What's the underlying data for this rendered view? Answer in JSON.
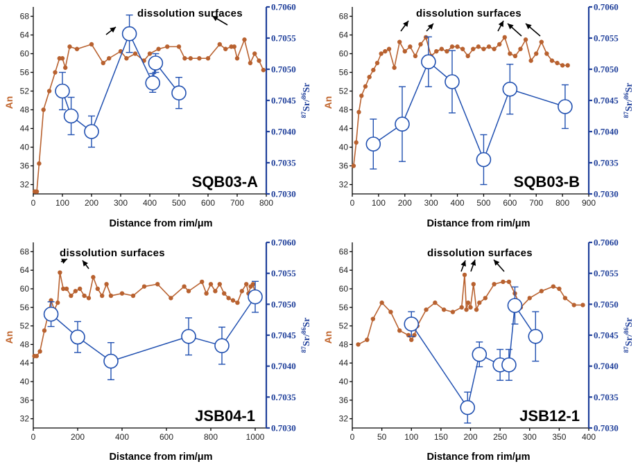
{
  "colors": {
    "an": "#b8612f",
    "sr": "#1f4fb0",
    "axis_right": "#1f3f9a",
    "label_an": "#c0632a"
  },
  "chart_data": [
    {
      "type": "line",
      "title": "SQB03-A",
      "xlabel": "Distance from rim/μm",
      "ylabel_left": "An",
      "ylabel_right": "87Sr/86Sr",
      "xlim": [
        0,
        800
      ],
      "xticks": [
        0,
        100,
        200,
        300,
        400,
        500,
        600,
        700,
        800
      ],
      "ylim_left": [
        30,
        70
      ],
      "yticks_left": [
        32,
        36,
        40,
        44,
        48,
        52,
        56,
        60,
        64,
        68
      ],
      "ylim_right": [
        0.703,
        0.706
      ],
      "yticks_right": [
        "0.7030",
        "0.7035",
        "0.7040",
        "0.7045",
        "0.7050",
        "0.7055",
        "0.7060"
      ],
      "annotation": "dissolution surfaces",
      "series": [
        {
          "name": "An",
          "x": [
            5,
            12,
            20,
            35,
            55,
            75,
            90,
            100,
            110,
            125,
            150,
            200,
            240,
            260,
            300,
            320,
            350,
            380,
            400,
            430,
            460,
            500,
            520,
            540,
            570,
            600,
            640,
            660,
            680,
            690,
            700,
            725,
            745,
            760,
            775,
            790
          ],
          "y": [
            30.5,
            30.5,
            36.5,
            48,
            52,
            56,
            59,
            59,
            57,
            61.5,
            61,
            62,
            58,
            59,
            60.5,
            59,
            60,
            58.5,
            60,
            61,
            61.5,
            61.5,
            59,
            59,
            59,
            59,
            62,
            61,
            61.5,
            61.5,
            59,
            63,
            58,
            60,
            58.5,
            56.5
          ]
        },
        {
          "name": "87Sr/86Sr",
          "x": [
            100,
            130,
            200,
            330,
            410,
            420,
            500
          ],
          "y": [
            0.70465,
            0.70425,
            0.704,
            0.70557,
            0.70478,
            0.7051,
            0.70462
          ],
          "err": [
            0.0003,
            0.0003,
            0.00025,
            0.0003,
            0.00015,
            0.00015,
            0.00025
          ]
        }
      ]
    },
    {
      "type": "line",
      "title": "SQB03-B",
      "xlabel": "Distance from rim/μm",
      "ylabel_left": "An",
      "ylabel_right": "87Sr/86Sr",
      "xlim": [
        0,
        900
      ],
      "xticks": [
        0,
        100,
        200,
        300,
        400,
        500,
        600,
        700,
        800,
        900
      ],
      "ylim_left": [
        30,
        70
      ],
      "yticks_left": [
        32,
        36,
        40,
        44,
        48,
        52,
        56,
        60,
        64,
        68
      ],
      "ylim_right": [
        0.703,
        0.706
      ],
      "yticks_right": [
        "0.7030",
        "0.7035",
        "0.7040",
        "0.7045",
        "0.7050",
        "0.7055",
        "0.7060"
      ],
      "annotation": "dissolution surfaces",
      "series": [
        {
          "name": "An",
          "x": [
            5,
            15,
            25,
            35,
            50,
            65,
            80,
            95,
            110,
            125,
            140,
            160,
            180,
            200,
            220,
            240,
            260,
            280,
            300,
            320,
            340,
            360,
            380,
            400,
            420,
            440,
            460,
            480,
            500,
            520,
            540,
            560,
            580,
            600,
            620,
            640,
            660,
            680,
            700,
            720,
            740,
            760,
            780,
            800,
            820
          ],
          "y": [
            36,
            41,
            47.5,
            51,
            53,
            55,
            56.5,
            58,
            60,
            60.5,
            61,
            57,
            62.5,
            60.5,
            61.5,
            59.5,
            62,
            63.5,
            59.5,
            60.5,
            61,
            60.5,
            61.5,
            61.5,
            61,
            59.5,
            61,
            61.5,
            61,
            61.5,
            61,
            62,
            63.5,
            60,
            59.5,
            61,
            63,
            58.5,
            60,
            62.5,
            60,
            58.5,
            58,
            57.5,
            57.5
          ]
        },
        {
          "name": "87Sr/86Sr",
          "x": [
            80,
            190,
            290,
            380,
            500,
            600,
            810
          ],
          "y": [
            0.7038,
            0.70412,
            0.70512,
            0.7048,
            0.70355,
            0.70468,
            0.7044
          ],
          "err": [
            0.0004,
            0.0006,
            0.0004,
            0.0005,
            0.0004,
            0.0004,
            0.00035
          ]
        }
      ]
    },
    {
      "type": "line",
      "title": "JSB04-1",
      "xlabel": "Distance from rim/μm",
      "ylabel_left": "An",
      "ylabel_right": "87Sr/86Sr",
      "xlim": [
        0,
        1050
      ],
      "xticks": [
        0,
        200,
        400,
        600,
        800,
        1000
      ],
      "ylim_left": [
        30,
        70
      ],
      "yticks_left": [
        32,
        36,
        40,
        44,
        48,
        52,
        56,
        60,
        64,
        68
      ],
      "ylim_right": [
        0.703,
        0.706
      ],
      "yticks_right": [
        "0.7030",
        "0.7035",
        "0.7040",
        "0.7045",
        "0.7050",
        "0.7055",
        "0.7060"
      ],
      "annotation": "dissolution surfaces",
      "series": [
        {
          "name": "An",
          "x": [
            5,
            15,
            30,
            50,
            65,
            80,
            95,
            110,
            120,
            135,
            150,
            170,
            190,
            210,
            230,
            250,
            270,
            290,
            310,
            330,
            350,
            400,
            450,
            500,
            560,
            620,
            680,
            700,
            760,
            780,
            800,
            820,
            840,
            860,
            880,
            900,
            920,
            940,
            960,
            970,
            980,
            990,
            1000,
            1010
          ],
          "y": [
            45.5,
            45.5,
            46.5,
            51,
            54,
            57.5,
            55.5,
            57,
            63.5,
            60,
            60,
            58.5,
            59.5,
            60,
            58.5,
            58,
            62.5,
            60,
            58.5,
            61,
            58.5,
            59,
            58.5,
            60.5,
            61,
            58,
            60.5,
            59.5,
            61.5,
            59,
            61,
            59.5,
            61,
            59,
            58,
            57.5,
            57,
            59.5,
            61,
            59,
            60.5,
            61,
            59,
            58
          ]
        },
        {
          "name": "87Sr/86Sr",
          "x": [
            80,
            200,
            350,
            700,
            850,
            1000
          ],
          "y": [
            0.70484,
            0.70447,
            0.70408,
            0.70448,
            0.70433,
            0.70512
          ],
          "err": [
            0.0002,
            0.00025,
            0.0003,
            0.0003,
            0.0003,
            0.00025
          ]
        }
      ]
    },
    {
      "type": "line",
      "title": "JSB12-1",
      "xlabel": "Distance from rim/μm",
      "ylabel_left": "An",
      "ylabel_right": "87Sr/86Sr",
      "xlim": [
        0,
        400
      ],
      "xticks": [
        0,
        50,
        100,
        150,
        200,
        250,
        300,
        350,
        400
      ],
      "ylim_left": [
        30,
        70
      ],
      "yticks_left": [
        32,
        36,
        40,
        44,
        48,
        52,
        56,
        60,
        64,
        68
      ],
      "ylim_right": [
        0.703,
        0.706
      ],
      "yticks_right": [
        "0.7030",
        "0.7035",
        "0.7040",
        "0.7045",
        "0.7050",
        "0.7055",
        "0.7060"
      ],
      "annotation": "dissolution surfaces",
      "series": [
        {
          "name": "An",
          "x": [
            10,
            25,
            35,
            50,
            65,
            80,
            95,
            100,
            105,
            110,
            125,
            140,
            155,
            170,
            185,
            190,
            193,
            196,
            200,
            205,
            210,
            215,
            225,
            240,
            255,
            265,
            275,
            285,
            300,
            320,
            340,
            350,
            360,
            375,
            390
          ],
          "y": [
            48,
            49,
            53.5,
            57,
            55,
            51,
            50,
            49,
            50,
            52,
            55.5,
            57,
            55.5,
            55,
            56,
            63,
            55.5,
            57,
            56,
            61,
            55.5,
            57,
            58,
            61,
            61.5,
            61.5,
            59,
            56,
            58,
            59.5,
            60.5,
            60,
            58,
            56.5,
            56.5
          ]
        },
        {
          "name": "87Sr/86Sr",
          "x": [
            100,
            195,
            215,
            250,
            265,
            275,
            310
          ],
          "y": [
            0.70468,
            0.70333,
            0.70419,
            0.70402,
            0.70402,
            0.70498,
            0.70448
          ],
          "err": [
            0.0002,
            0.00025,
            0.0002,
            0.00025,
            0.00025,
            0.0003,
            0.0004
          ]
        }
      ]
    }
  ]
}
